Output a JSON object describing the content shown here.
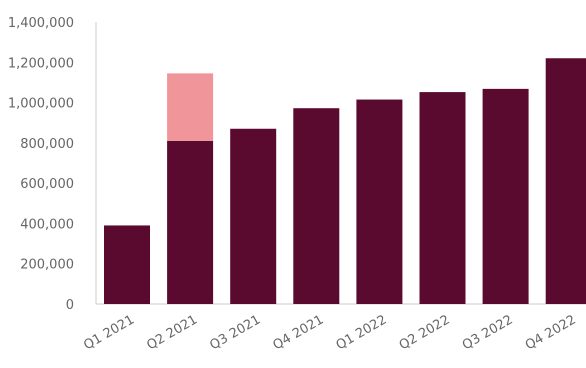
{
  "chart_data": {
    "type": "bar",
    "stacked": true,
    "title": "",
    "xlabel": "",
    "ylabel": "",
    "categories": [
      "Q1 2021",
      "Q2 2021",
      "Q3 2021",
      "Q4 2021",
      "Q1 2022",
      "Q2 2022",
      "Q3 2022",
      "Q4 2022"
    ],
    "series": [
      {
        "color": "#5a0a2e",
        "values": [
          390000,
          810000,
          870000,
          972000,
          1015000,
          1052000,
          1068000,
          1220000
        ]
      },
      {
        "color": "#f0959a",
        "values": [
          0,
          335000,
          0,
          0,
          0,
          0,
          0,
          0
        ]
      }
    ],
    "ylim": [
      0,
      1400000
    ],
    "yticks": [
      0,
      200000,
      400000,
      600000,
      800000,
      1000000,
      1200000,
      1400000
    ],
    "ytick_labels": [
      "0",
      "200,000",
      "400,000",
      "600,000",
      "800,000",
      "1,000,000",
      "1,200,000",
      "1,400,000"
    ],
    "grid": false,
    "legend": "none",
    "axis_color": "#cccccc",
    "tick_label_color": "#666666"
  }
}
